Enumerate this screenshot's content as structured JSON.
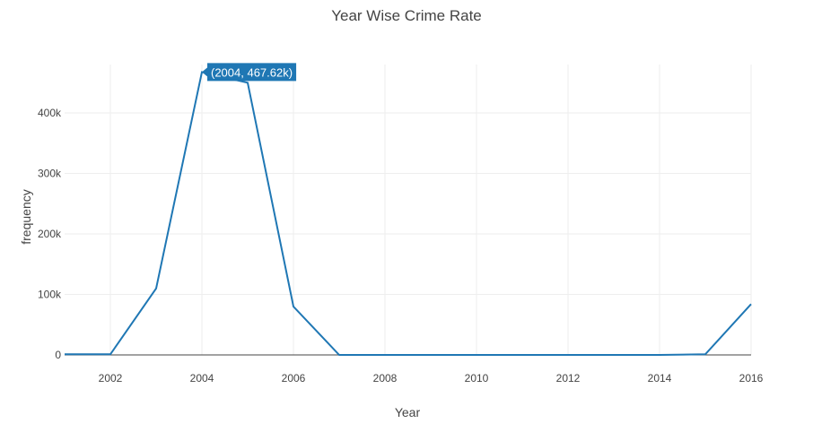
{
  "chart_data": {
    "type": "line",
    "title": "Year Wise Crime Rate",
    "xlabel": "Year",
    "ylabel": "frequency",
    "xlim": [
      2001,
      2016
    ],
    "ylim": [
      0,
      480000
    ],
    "grid": true,
    "x_ticks": [
      "2002",
      "2004",
      "2006",
      "2008",
      "2010",
      "2012",
      "2014",
      "2016"
    ],
    "y_ticks": [
      "0",
      "100k",
      "200k",
      "300k",
      "400k"
    ],
    "series": [
      {
        "x": [
          2001,
          2002,
          2003,
          2004,
          2005,
          2006,
          2007,
          2008,
          2009,
          2010,
          2011,
          2012,
          2013,
          2014,
          2015,
          2016
        ],
        "y": [
          1000,
          1000,
          110000,
          467620,
          450000,
          80000,
          0,
          0,
          0,
          0,
          0,
          0,
          0,
          0,
          1000,
          84000
        ],
        "color": "#1f77b4"
      }
    ],
    "hover_label": "(2004, 467.62k)"
  }
}
